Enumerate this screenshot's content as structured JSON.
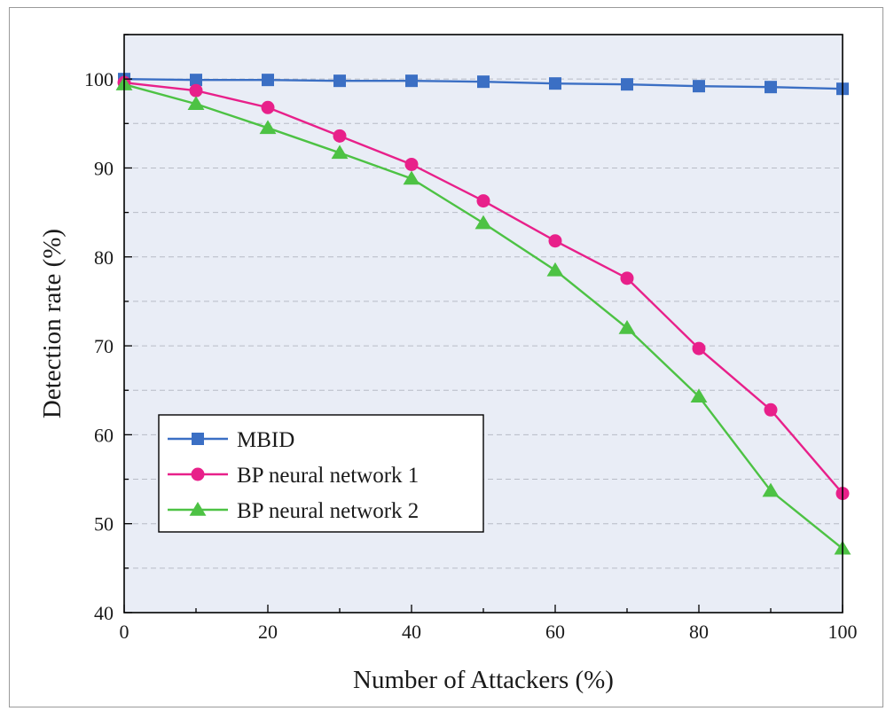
{
  "chart_data": {
    "type": "line",
    "title": "",
    "xlabel": "Number of Attackers (%)",
    "ylabel": "Detection rate (%)",
    "xlim": [
      0,
      100
    ],
    "ylim": [
      40,
      105
    ],
    "xticks": [
      0,
      20,
      40,
      60,
      80,
      100
    ],
    "yticks": [
      40,
      50,
      60,
      70,
      80,
      90,
      100
    ],
    "grid": "horizontal dashed",
    "legend_position": "lower-left",
    "background": "#e9edf6",
    "x": [
      0,
      10,
      20,
      30,
      40,
      50,
      60,
      70,
      80,
      90,
      100
    ],
    "series": [
      {
        "name": "MBID",
        "marker": "square",
        "color": "#3b6fc4",
        "values": [
          100,
          99.9,
          99.9,
          99.8,
          99.8,
          99.7,
          99.5,
          99.4,
          99.2,
          99.1,
          98.9
        ]
      },
      {
        "name": "BP neural network 1",
        "marker": "circle",
        "color": "#e8208a",
        "values": [
          99.6,
          98.7,
          96.8,
          93.6,
          90.4,
          86.3,
          81.8,
          77.6,
          69.7,
          62.8,
          53.4
        ]
      },
      {
        "name": "BP neural network 2",
        "marker": "triangle",
        "color": "#4dc244",
        "values": [
          99.4,
          97.2,
          94.5,
          91.7,
          88.8,
          83.8,
          78.5,
          72.0,
          64.3,
          53.7,
          47.2
        ]
      }
    ]
  }
}
